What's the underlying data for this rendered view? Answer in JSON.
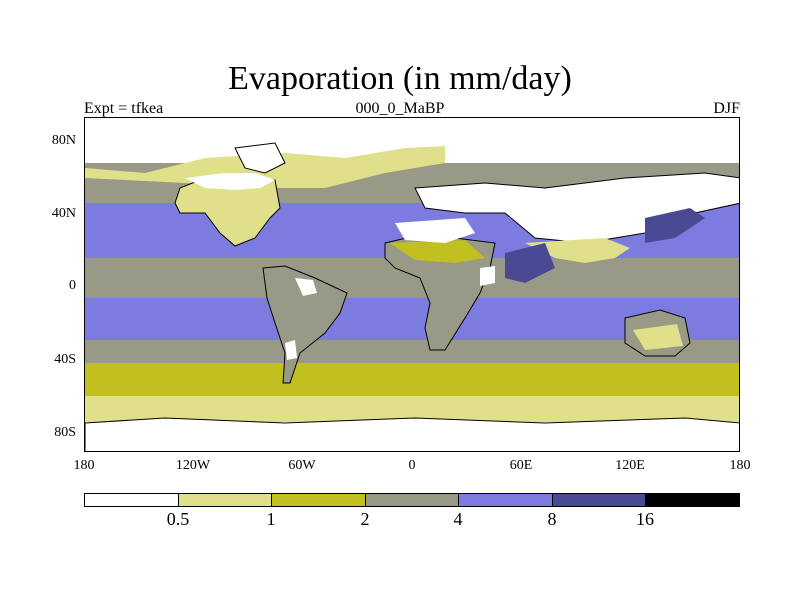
{
  "title": "Evaporation (in mm/day)",
  "subtitle_left": "Expt = tfkea",
  "subtitle_center": "000_0_MaBP",
  "subtitle_right": "DJF",
  "lat_ticks": [
    "80N",
    "40N",
    "0",
    "40S",
    "80S"
  ],
  "lon_ticks": [
    "180",
    "120W",
    "60W",
    "0",
    "60E",
    "120E",
    "180"
  ],
  "colorbar": {
    "labels": [
      "0.5",
      "1",
      "2",
      "4",
      "8",
      "16"
    ],
    "colors": [
      "#ffffff",
      "#e0e08a",
      "#c2bf20",
      "#999988",
      "#7b7be0",
      "#4a4a94",
      "#000000"
    ]
  },
  "colors": {
    "land_outline": "#000000",
    "background": "#ffffff"
  }
}
